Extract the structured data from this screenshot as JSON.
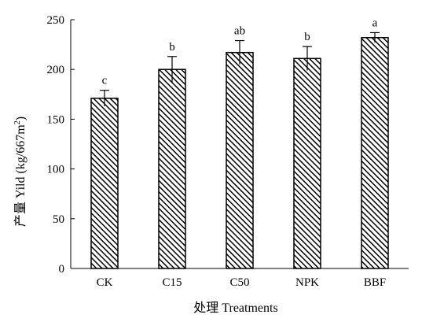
{
  "chart_data": {
    "type": "bar",
    "categories": [
      "CK",
      "C15",
      "C50",
      "NPK",
      "BBF"
    ],
    "values": [
      171,
      200,
      217,
      211,
      232
    ],
    "errors": [
      8,
      13,
      12,
      12,
      5
    ],
    "significance": [
      "c",
      "b",
      "ab",
      "b",
      "a"
    ],
    "xlabel": "处理 Treatments",
    "ylabel": "产量 Yild (kg/667m²)",
    "ylabel_main": "产量 Yild (kg/667m",
    "ylabel_sup": "2",
    "ylabel_end": ")",
    "ylim": [
      0,
      250
    ],
    "yticks": [
      0,
      50,
      100,
      150,
      200,
      250
    ],
    "grid": false,
    "bar_fill": "diagonal-hatch",
    "bar_color": "#000000"
  }
}
